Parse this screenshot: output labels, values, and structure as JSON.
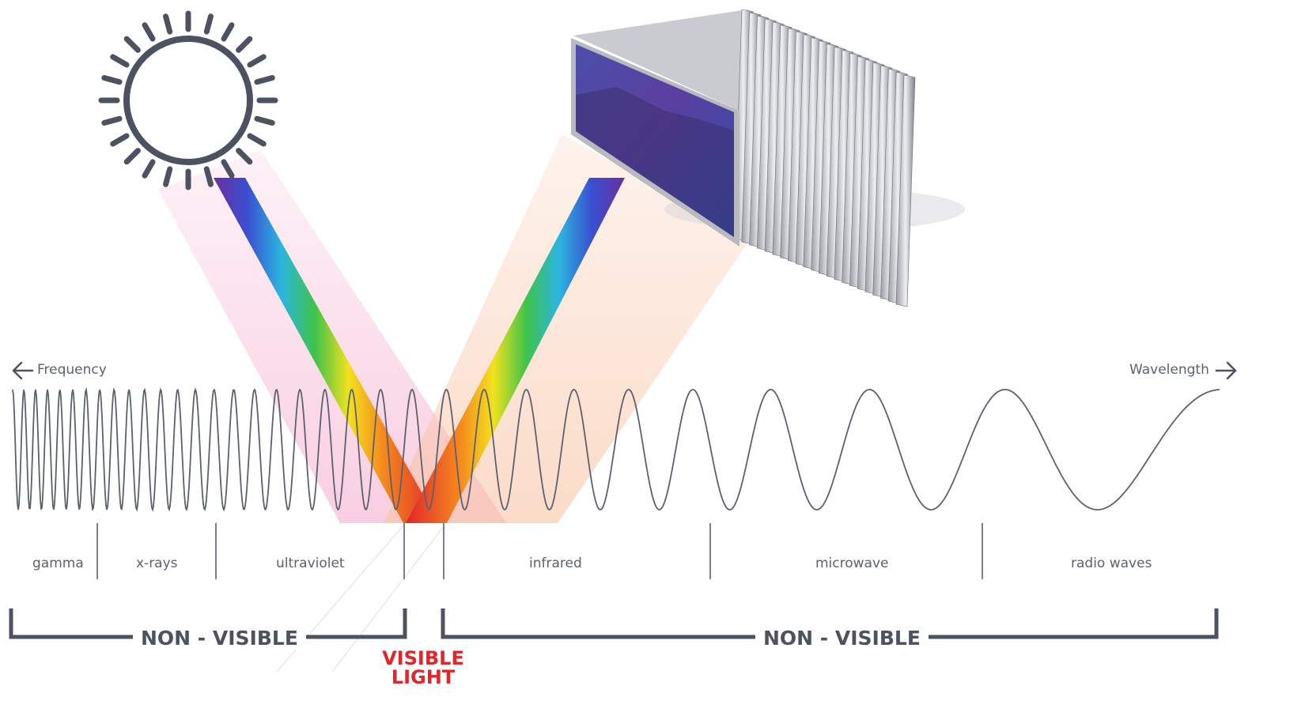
{
  "axis": {
    "left_label": "Frequency",
    "right_label": "Wavelength"
  },
  "bands": [
    {
      "name": "gamma"
    },
    {
      "name": "x-rays"
    },
    {
      "name": "ultraviolet"
    },
    {
      "name": "infrared"
    },
    {
      "name": "microwave"
    },
    {
      "name": "radio waves"
    }
  ],
  "brackets": {
    "left_label": "NON - VISIBLE",
    "right_label": "NON - VISIBLE",
    "visible_line1": "VISIBLE",
    "visible_line2": "LIGHT"
  },
  "icons": {
    "light_source": "sun-icon",
    "device": "hyperspectral-camera-icon"
  },
  "colors": {
    "line": "#4c5261",
    "visible_label": "#e0262a",
    "left_beam": "#f3a7c8",
    "right_beam": "#f8c3a4"
  }
}
